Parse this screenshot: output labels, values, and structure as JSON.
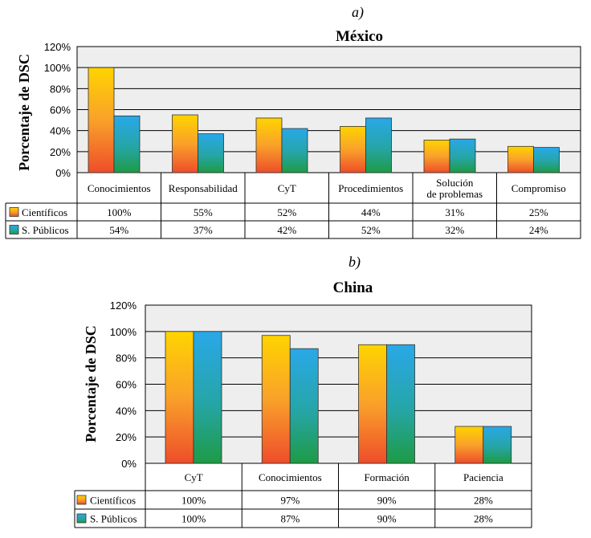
{
  "chart_data": [
    {
      "type": "bar",
      "panel": "a)",
      "title": "México",
      "ylabel": "Porcentaje de DSC",
      "ylim": [
        0,
        120
      ],
      "yticks": [
        "0%",
        "20%",
        "40%",
        "60%",
        "80%",
        "100%",
        "120%"
      ],
      "categories": [
        [
          "Conocimientos"
        ],
        [
          "Responsabilidad"
        ],
        [
          "CyT"
        ],
        [
          "Procedimientos"
        ],
        [
          "Solución",
          "de problemas"
        ],
        [
          "Compromiso"
        ]
      ],
      "series": [
        {
          "name": "Científicos",
          "values": [
            100,
            55,
            52,
            44,
            31,
            25
          ],
          "labels": [
            "100%",
            "55%",
            "52%",
            "44%",
            "31%",
            "25%"
          ]
        },
        {
          "name": "S. Públicos",
          "values": [
            54,
            37,
            42,
            52,
            32,
            24
          ],
          "labels": [
            "54%",
            "37%",
            "42%",
            "52%",
            "32%",
            "24%"
          ]
        }
      ],
      "grid": true,
      "legend": "table-below"
    },
    {
      "type": "bar",
      "panel": "b)",
      "title": "China",
      "ylabel": "Porcentaje de DSC",
      "ylim": [
        0,
        120
      ],
      "yticks": [
        "0%",
        "20%",
        "40%",
        "60%",
        "80%",
        "100%",
        "120%"
      ],
      "categories": [
        [
          "CyT"
        ],
        [
          "Conocimientos"
        ],
        [
          "Formación"
        ],
        [
          "Paciencia"
        ]
      ],
      "series": [
        {
          "name": "Científicos",
          "values": [
            100,
            97,
            90,
            28
          ],
          "labels": [
            "100%",
            "97%",
            "90%",
            "28%"
          ]
        },
        {
          "name": "S. Públicos",
          "values": [
            100,
            87,
            90,
            28
          ],
          "labels": [
            "100%",
            "87%",
            "90%",
            "28%"
          ]
        }
      ],
      "grid": true,
      "legend": "table-below"
    }
  ],
  "colors": {
    "scientists": [
      "#ffd400",
      "#f9a12a",
      "#ee4d2a"
    ],
    "public": [
      "#29a8e8",
      "#26a5a6",
      "#1e9b45"
    ],
    "plot_bg": "#eeeeee",
    "grid": "#000000"
  }
}
